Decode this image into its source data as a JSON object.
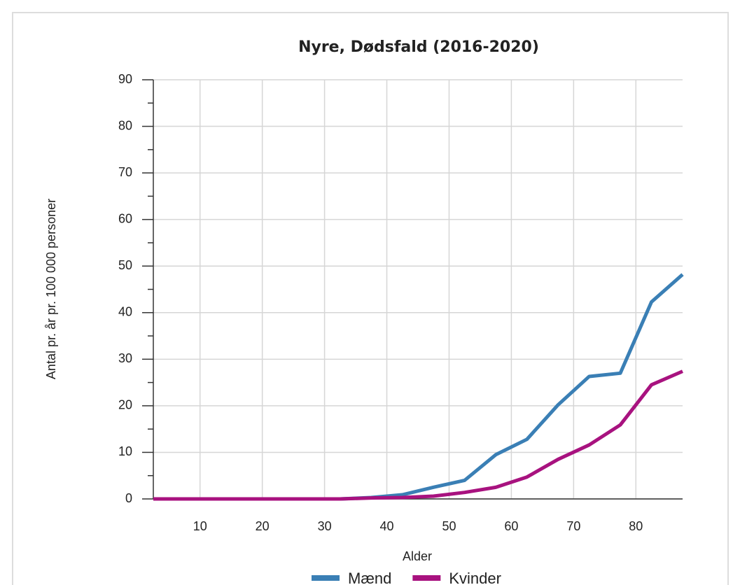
{
  "chart_data": {
    "type": "line",
    "title": "Nyre, Dødsfald (2016-2020)",
    "x_label": "Alder",
    "y_label": "Antal pr. år pr. 100 000 personer",
    "x": [
      2.5,
      7.5,
      12.5,
      17.5,
      22.5,
      27.5,
      32.5,
      37.5,
      42.5,
      47.5,
      52.5,
      57.5,
      62.5,
      67.5,
      72.5,
      77.5,
      82.5,
      87.5
    ],
    "series": [
      {
        "name": "Mænd",
        "color": "#3a7fb5",
        "values": [
          0,
          0,
          0,
          0,
          0,
          0,
          0,
          0.3,
          0.9,
          2.5,
          4.0,
          9.5,
          12.8,
          20.2,
          26.3,
          27.0,
          42.3,
          48.2
        ]
      },
      {
        "name": "Kvinder",
        "color": "#a8127f",
        "values": [
          0,
          0,
          0,
          0,
          0,
          0,
          0,
          0.2,
          0.3,
          0.6,
          1.4,
          2.5,
          4.7,
          8.5,
          11.6,
          15.9,
          24.5,
          27.4
        ]
      }
    ],
    "xlim": [
      2.5,
      87.5
    ],
    "xticks": [
      10,
      20,
      30,
      40,
      50,
      60,
      70,
      80
    ],
    "ylim": [
      0,
      90
    ],
    "yticks": [
      0,
      10,
      20,
      30,
      40,
      50,
      60,
      70,
      80,
      90
    ],
    "grid": true
  }
}
